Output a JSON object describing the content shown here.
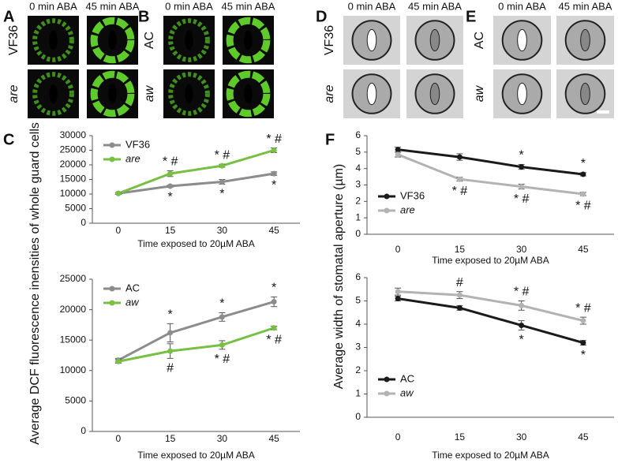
{
  "figure": {
    "panels": [
      {
        "letter": "A",
        "columns": [
          "0 min ABA",
          "45 min ABA"
        ],
        "rows": [
          {
            "text": "VF36",
            "italic": false
          },
          {
            "text": "are",
            "italic": true
          }
        ],
        "kind": "fluorescence"
      },
      {
        "letter": "B",
        "columns": [
          "0 min ABA",
          "45 min ABA"
        ],
        "rows": [
          {
            "text": "AC",
            "italic": false
          },
          {
            "text": "aw",
            "italic": true
          }
        ],
        "kind": "fluorescence"
      },
      {
        "letter": "D",
        "columns": [
          "0 min ABA",
          "45 min ABA"
        ],
        "rows": [
          {
            "text": "VF36",
            "italic": false
          },
          {
            "text": "are",
            "italic": true
          }
        ],
        "kind": "brightfield"
      },
      {
        "letter": "E",
        "columns": [
          "0 min ABA",
          "45 min ABA"
        ],
        "rows": [
          {
            "text": "AC",
            "italic": false
          },
          {
            "text": "aw",
            "italic": true
          }
        ],
        "kind": "brightfield"
      }
    ]
  },
  "chart_data": [
    {
      "type": "line",
      "panel": "C",
      "ylabel": "Average DCF fluorescence inensities of whole guard cells",
      "xlabel": "Time exposed to 20µM ABA",
      "categories": [
        "0",
        "15",
        "30",
        "45"
      ],
      "ylim": [
        0,
        30000
      ],
      "yticks": [
        0,
        5000,
        10000,
        15000,
        20000,
        25000,
        30000
      ],
      "legend": "upper left",
      "series": [
        {
          "name": "VF36",
          "color": "#8c8c8c",
          "italic": false,
          "values": [
            10200,
            12700,
            14200,
            17000
          ],
          "errors": [
            300,
            300,
            800,
            600
          ]
        },
        {
          "name": "are",
          "color": "#77c043",
          "italic": true,
          "values": [
            10200,
            17000,
            19700,
            25000
          ],
          "errors": [
            300,
            1000,
            500,
            800
          ]
        }
      ],
      "annotations": [
        {
          "series": 0,
          "index": 1,
          "text": "*",
          "position": "below"
        },
        {
          "series": 0,
          "index": 2,
          "text": "*",
          "position": "below"
        },
        {
          "series": 0,
          "index": 3,
          "text": "*",
          "position": "below"
        },
        {
          "series": 1,
          "index": 1,
          "text": "* #",
          "position": "above"
        },
        {
          "series": 1,
          "index": 2,
          "text": "* #",
          "position": "above"
        },
        {
          "series": 1,
          "index": 3,
          "text": "* #",
          "position": "above"
        }
      ]
    },
    {
      "type": "line",
      "xlabel": "Time exposed to 20µM ABA",
      "categories": [
        "0",
        "15",
        "30",
        "45"
      ],
      "ylim": [
        0,
        25000
      ],
      "yticks": [
        0,
        5000,
        10000,
        15000,
        20000,
        25000
      ],
      "legend": "upper left",
      "series": [
        {
          "name": "AC",
          "color": "#8c8c8c",
          "italic": false,
          "values": [
            11700,
            16200,
            18800,
            21300
          ],
          "errors": [
            300,
            1500,
            700,
            800
          ]
        },
        {
          "name": "aw",
          "color": "#77c043",
          "italic": true,
          "values": [
            11500,
            13200,
            14200,
            17000
          ],
          "errors": [
            300,
            1200,
            700,
            300
          ]
        }
      ],
      "annotations": [
        {
          "series": 0,
          "index": 1,
          "text": "*",
          "position": "above"
        },
        {
          "series": 0,
          "index": 2,
          "text": "*",
          "position": "above"
        },
        {
          "series": 0,
          "index": 3,
          "text": "*",
          "position": "above"
        },
        {
          "series": 1,
          "index": 1,
          "text": "#",
          "position": "below"
        },
        {
          "series": 1,
          "index": 2,
          "text": "* #",
          "position": "below"
        },
        {
          "series": 1,
          "index": 3,
          "text": "* #",
          "position": "below"
        }
      ]
    },
    {
      "type": "line",
      "panel": "F",
      "ylabel": "Average width of stomatal aperture (µm)",
      "xlabel": "Time exposed to 20µM ABA",
      "categories": [
        "0",
        "15",
        "30",
        "45"
      ],
      "ylim": [
        0,
        6
      ],
      "yticks": [
        0,
        1,
        2,
        3,
        4,
        5,
        6
      ],
      "legend": "lower left",
      "series": [
        {
          "name": "VF36",
          "color": "#1a1a1a",
          "italic": false,
          "values": [
            5.15,
            4.7,
            4.1,
            3.65
          ],
          "errors": [
            0.15,
            0.2,
            0.15,
            0.1
          ]
        },
        {
          "name": "are",
          "color": "#b3b3b3",
          "italic": true,
          "values": [
            4.85,
            3.35,
            2.9,
            2.45
          ],
          "errors": [
            0.15,
            0.12,
            0.15,
            0.1
          ]
        }
      ],
      "annotations": [
        {
          "series": 0,
          "index": 2,
          "text": "*",
          "position": "above"
        },
        {
          "series": 0,
          "index": 3,
          "text": "*",
          "position": "above"
        },
        {
          "series": 1,
          "index": 1,
          "text": "* #",
          "position": "below"
        },
        {
          "series": 1,
          "index": 2,
          "text": "* #",
          "position": "below"
        },
        {
          "series": 1,
          "index": 3,
          "text": "* #",
          "position": "below"
        }
      ]
    },
    {
      "type": "line",
      "xlabel": "Time exposed to 20µM ABA",
      "categories": [
        "0",
        "15",
        "30",
        "45"
      ],
      "ylim": [
        0,
        6
      ],
      "yticks": [
        0,
        1,
        2,
        3,
        4,
        5,
        6
      ],
      "legend": "lower left",
      "series": [
        {
          "name": "AC",
          "color": "#1a1a1a",
          "italic": false,
          "values": [
            5.1,
            4.7,
            3.95,
            3.2
          ],
          "errors": [
            0.1,
            0.1,
            0.2,
            0.1
          ]
        },
        {
          "name": "aw",
          "color": "#b3b3b3",
          "italic": true,
          "values": [
            5.4,
            5.25,
            4.8,
            4.15
          ],
          "errors": [
            0.15,
            0.15,
            0.2,
            0.15
          ]
        }
      ],
      "annotations": [
        {
          "series": 1,
          "index": 1,
          "text": "#",
          "position": "above"
        },
        {
          "series": 1,
          "index": 2,
          "text": "* #",
          "position": "above"
        },
        {
          "series": 1,
          "index": 3,
          "text": "* #",
          "position": "above"
        },
        {
          "series": 0,
          "index": 2,
          "text": "*",
          "position": "below"
        },
        {
          "series": 0,
          "index": 3,
          "text": "*",
          "position": "below"
        }
      ]
    }
  ]
}
